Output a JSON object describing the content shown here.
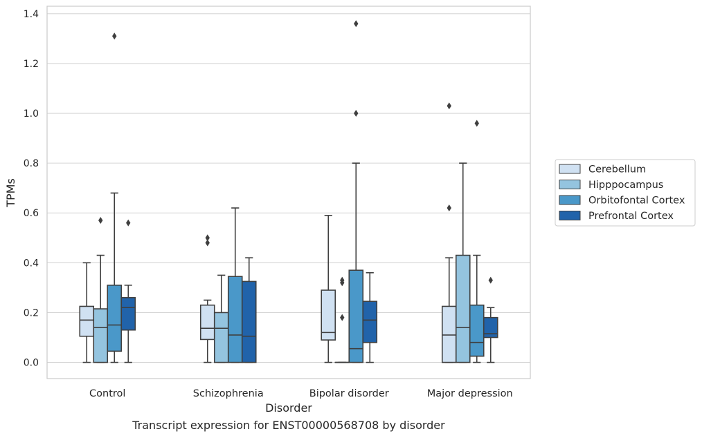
{
  "chart_data": {
    "type": "box",
    "xlabel": "Disorder",
    "ylabel": "TPMs",
    "caption": "Transcript expression for ENST00000568708 by disorder",
    "ylim": [
      -0.065,
      1.43
    ],
    "yticks": [
      0.0,
      0.2,
      0.4,
      0.6,
      0.8,
      1.0,
      1.2,
      1.4
    ],
    "ytick_labels": [
      "0.0",
      "0.2",
      "0.4",
      "0.6",
      "0.8",
      "1.0",
      "1.2",
      "1.4"
    ],
    "grid": "horizontal",
    "legend_position": "right",
    "categories": [
      "Control",
      "Schizophrenia",
      "Bipolar disorder",
      "Major depression"
    ],
    "series": [
      {
        "name": "Cerebellum",
        "color": "#d0e1f2",
        "boxes": [
          {
            "whislo": 0.0,
            "q1": 0.105,
            "med": 0.17,
            "q3": 0.225,
            "whishi": 0.4,
            "fliers": []
          },
          {
            "whislo": 0.0,
            "q1": 0.092,
            "med": 0.137,
            "q3": 0.23,
            "whishi": 0.25,
            "fliers": [
              0.48,
              0.5
            ]
          },
          {
            "whislo": 0.0,
            "q1": 0.09,
            "med": 0.12,
            "q3": 0.29,
            "whishi": 0.59,
            "fliers": []
          },
          {
            "whislo": 0.0,
            "q1": 0.0,
            "med": 0.11,
            "q3": 0.225,
            "whishi": 0.42,
            "fliers": [
              0.62,
              1.03
            ]
          }
        ]
      },
      {
        "name": "Hipppocampus",
        "color": "#94c4df",
        "boxes": [
          {
            "whislo": 0.0,
            "q1": 0.0,
            "med": 0.14,
            "q3": 0.215,
            "whishi": 0.43,
            "fliers": [
              0.57
            ]
          },
          {
            "whislo": 0.0,
            "q1": 0.0,
            "med": 0.137,
            "q3": 0.2,
            "whishi": 0.35,
            "fliers": []
          },
          {
            "whislo": 0.0,
            "q1": 0.0,
            "med": 0.0,
            "q3": 0.0,
            "whishi": 0.0,
            "fliers": [
              0.18,
              0.32,
              0.33
            ]
          },
          {
            "whislo": 0.0,
            "q1": 0.0,
            "med": 0.14,
            "q3": 0.43,
            "whishi": 0.8,
            "fliers": []
          }
        ]
      },
      {
        "name": "Orbitofontal Cortex",
        "color": "#4a98c9",
        "boxes": [
          {
            "whislo": 0.0,
            "q1": 0.045,
            "med": 0.15,
            "q3": 0.31,
            "whishi": 0.68,
            "fliers": [
              1.31
            ]
          },
          {
            "whislo": 0.0,
            "q1": 0.0,
            "med": 0.11,
            "q3": 0.345,
            "whishi": 0.62,
            "fliers": []
          },
          {
            "whislo": 0.0,
            "q1": 0.0,
            "med": 0.055,
            "q3": 0.37,
            "whishi": 0.8,
            "fliers": [
              1.0,
              1.36
            ]
          },
          {
            "whislo": 0.0,
            "q1": 0.025,
            "med": 0.08,
            "q3": 0.23,
            "whishi": 0.43,
            "fliers": [
              0.96
            ]
          }
        ]
      },
      {
        "name": "Prefrontal Cortex",
        "color": "#2163aa",
        "boxes": [
          {
            "whislo": 0.0,
            "q1": 0.13,
            "med": 0.22,
            "q3": 0.26,
            "whishi": 0.31,
            "fliers": [
              0.56
            ]
          },
          {
            "whislo": 0.0,
            "q1": 0.0,
            "med": 0.105,
            "q3": 0.325,
            "whishi": 0.42,
            "fliers": []
          },
          {
            "whislo": 0.0,
            "q1": 0.08,
            "med": 0.17,
            "q3": 0.245,
            "whishi": 0.36,
            "fliers": []
          },
          {
            "whislo": 0.0,
            "q1": 0.1,
            "med": 0.115,
            "q3": 0.18,
            "whishi": 0.22,
            "fliers": [
              0.33
            ]
          }
        ]
      }
    ]
  }
}
